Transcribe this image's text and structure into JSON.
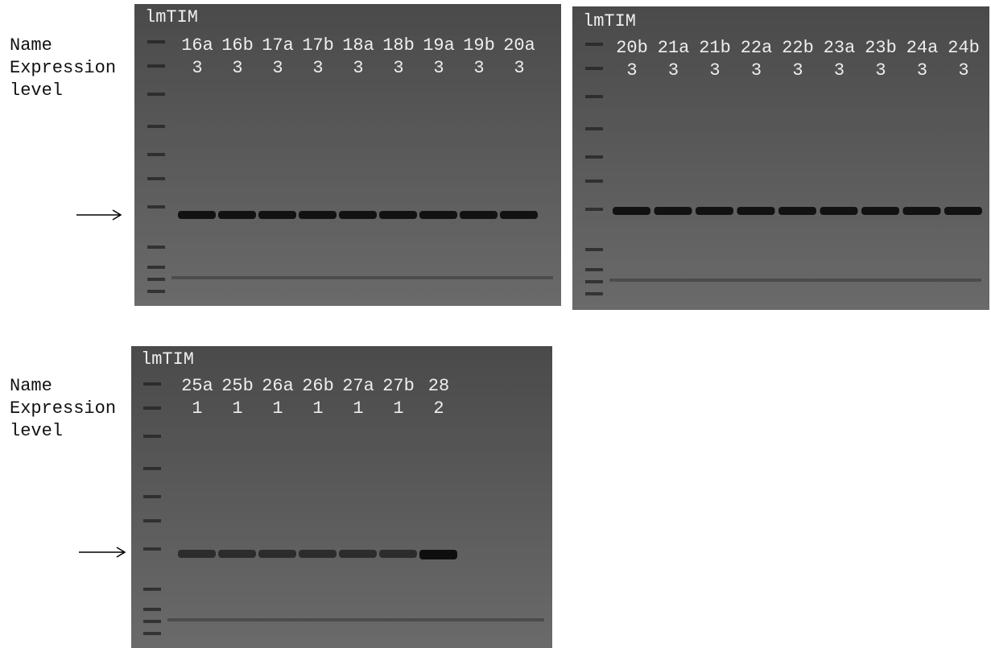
{
  "gels": [
    {
      "ladder": "lmTIM",
      "row_labels": {
        "name": "Name",
        "expression_level": "Expression level"
      },
      "lanes": [
        {
          "name": "16a",
          "level": 3
        },
        {
          "name": "16b",
          "level": 3
        },
        {
          "name": "17a",
          "level": 3
        },
        {
          "name": "17b",
          "level": 3
        },
        {
          "name": "18a",
          "level": 3
        },
        {
          "name": "18b",
          "level": 3
        },
        {
          "name": "19a",
          "level": 3
        },
        {
          "name": "19b",
          "level": 3
        },
        {
          "name": "20a",
          "level": 3
        }
      ]
    },
    {
      "ladder": "lmTIM",
      "lanes": [
        {
          "name": "20b",
          "level": 3
        },
        {
          "name": "21a",
          "level": 3
        },
        {
          "name": "21b",
          "level": 3
        },
        {
          "name": "22a",
          "level": 3
        },
        {
          "name": "22b",
          "level": 3
        },
        {
          "name": "23a",
          "level": 3
        },
        {
          "name": "23b",
          "level": 3
        },
        {
          "name": "24a",
          "level": 3
        },
        {
          "name": "24b",
          "level": 3
        }
      ]
    },
    {
      "ladder": "lmTIM",
      "row_labels": {
        "name": "Name",
        "expression_level": "Expression level"
      },
      "lanes": [
        {
          "name": "25a",
          "level": 1
        },
        {
          "name": "25b",
          "level": 1
        },
        {
          "name": "26a",
          "level": 1
        },
        {
          "name": "26b",
          "level": 1
        },
        {
          "name": "27a",
          "level": 1
        },
        {
          "name": "27b",
          "level": 1
        },
        {
          "name": "28",
          "level": 2
        }
      ]
    }
  ]
}
